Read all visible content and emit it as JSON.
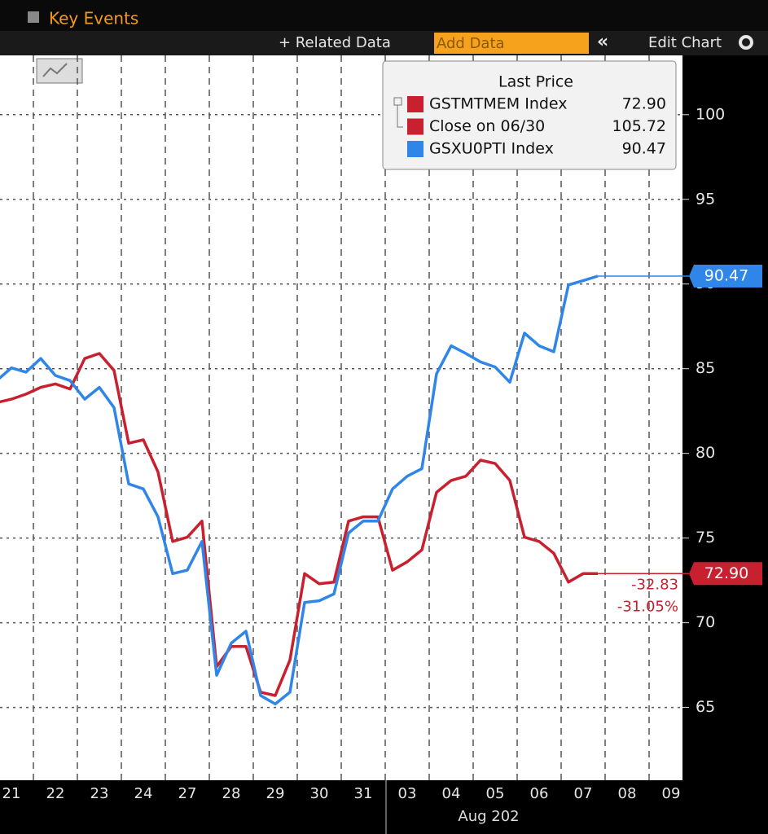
{
  "header": {
    "title": "Key Events"
  },
  "toolbar": {
    "related": "+ Related Data",
    "add": "Add Data",
    "collapse": "«",
    "edit": "Edit Chart"
  },
  "chart_data": {
    "type": "line",
    "legend_title": "Last Price",
    "categories": [
      null,
      "21",
      null,
      null,
      "22",
      null,
      null,
      "23",
      null,
      null,
      "24",
      null,
      null,
      "27",
      null,
      null,
      "28",
      null,
      null,
      "29",
      null,
      null,
      "30",
      null,
      null,
      "31",
      null,
      null,
      "03",
      null,
      null,
      "04",
      null,
      null,
      "05",
      null,
      null,
      "06",
      null,
      null,
      "07",
      null,
      null,
      "08",
      null,
      null,
      "09",
      null
    ],
    "x_sublabel": "Aug 202",
    "ylim": [
      60.7,
      103.5
    ],
    "yticks": [
      65,
      70,
      75,
      80,
      85,
      90,
      95,
      100
    ],
    "grid": true,
    "series": [
      {
        "name": "GSTMTMEM Index",
        "color": "#c8202e",
        "last_price": 72.9,
        "last_price_label": "72.90",
        "values": [
          83.0,
          83.2,
          83.5,
          83.9,
          84.1,
          83.8,
          85.6,
          85.9,
          84.9,
          80.6,
          80.8,
          78.9,
          74.8,
          75.05,
          76.0,
          67.4,
          68.6,
          68.6,
          65.9,
          65.7,
          67.8,
          72.9,
          72.3,
          72.4,
          76.0,
          76.25,
          76.25,
          73.1,
          73.6,
          74.3,
          77.7,
          78.4,
          78.65,
          79.6,
          79.4,
          78.4,
          75.05,
          74.8,
          74.1,
          72.4,
          72.9,
          72.9,
          null,
          null,
          null,
          null,
          null,
          null
        ]
      },
      {
        "name": "GSXU0PTI Index",
        "color": "#2f86e8",
        "last_price": 90.47,
        "values": [
          84.3,
          85.05,
          84.8,
          85.6,
          84.6,
          84.3,
          83.2,
          83.9,
          82.7,
          78.2,
          77.9,
          76.25,
          72.9,
          73.1,
          74.8,
          66.9,
          68.8,
          69.5,
          65.7,
          65.2,
          65.9,
          71.2,
          71.3,
          71.7,
          75.3,
          76.0,
          76.0,
          77.9,
          78.65,
          79.1,
          84.7,
          86.35,
          85.9,
          85.4,
          85.1,
          84.2,
          87.1,
          86.35,
          86.0,
          89.95,
          90.2,
          90.47,
          null,
          null,
          null,
          null,
          null,
          null
        ]
      }
    ],
    "reference": {
      "name": "Close on 06/30",
      "color": "#c8202e",
      "last_price": 105.72
    },
    "change": {
      "values": [
        -32.83,
        -31.05
      ],
      "value_labels": [
        "-32.83",
        "-31.05%"
      ]
    }
  }
}
